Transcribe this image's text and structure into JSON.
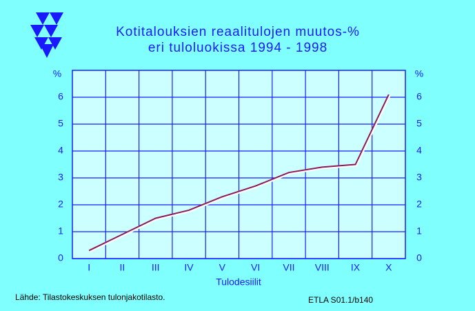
{
  "chart_data": {
    "type": "line",
    "title": [
      "Kotitalouksien reaalitulojen muutos-%",
      "eri tuloluokissa 1994 - 1998"
    ],
    "xlabel": "Tulodesiilit",
    "ylabel": "%",
    "categories": [
      "I",
      "II",
      "III",
      "IV",
      "V",
      "VI",
      "VII",
      "VIII",
      "IX",
      "X"
    ],
    "values": [
      0.3,
      0.9,
      1.5,
      1.8,
      2.3,
      2.7,
      3.2,
      3.4,
      3.5,
      6.1
    ],
    "color": "#8b1a5a",
    "ylim": [
      0,
      7
    ],
    "yticks": [
      0,
      1,
      2,
      3,
      4,
      5,
      6
    ],
    "grid": true,
    "source": "Lähde:  Tilastokeskuksen tulonjakotilasto.",
    "code": "ETLA S01.1/b140"
  }
}
